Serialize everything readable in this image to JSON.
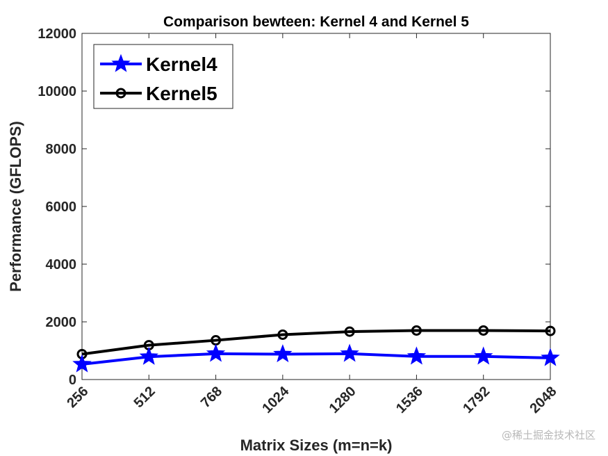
{
  "chart_data": {
    "type": "line",
    "title": "Comparison bewteen: Kernel 4 and Kernel 5",
    "xlabel": "Matrix Sizes (m=n=k)",
    "ylabel": "Performance (GFLOPS)",
    "categories": [
      "256",
      "512",
      "768",
      "1024",
      "1280",
      "1536",
      "1792",
      "2048"
    ],
    "ylim": [
      0,
      12000
    ],
    "yticks": [
      "0",
      "2000",
      "4000",
      "6000",
      "8000",
      "10000",
      "12000"
    ],
    "grid": false,
    "legend_position": "top-left",
    "series": [
      {
        "name": "Kernel4",
        "color": "#0000ff",
        "marker": "star",
        "values": [
          530,
          790,
          895,
          880,
          895,
          800,
          800,
          750
        ]
      },
      {
        "name": "Kernel5",
        "color": "#000000",
        "marker": "circle",
        "values": [
          880,
          1190,
          1360,
          1555,
          1660,
          1700,
          1700,
          1685
        ]
      }
    ]
  },
  "watermark": "@稀土掘金技术社区"
}
